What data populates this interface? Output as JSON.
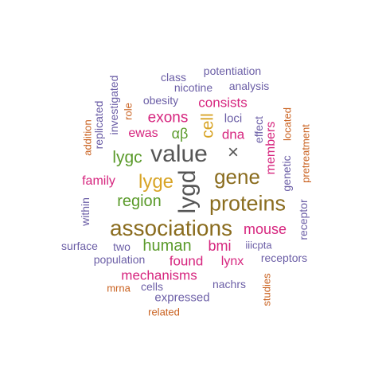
{
  "colors": {
    "purple": "#6b5ea6",
    "magenta": "#d6257e",
    "green": "#5a9a2a",
    "orange": "#c9601e",
    "brown": "#8a6c1e",
    "gold": "#d8a426",
    "gray": "#555555"
  },
  "words": {
    "w01": "associations",
    "w02": "proteins",
    "w03": "value",
    "w04": "lygd",
    "w05": "gene",
    "w06": "lyge",
    "w07": "human",
    "w08": "region",
    "w09": "lygc",
    "w10": "mouse",
    "w11": "exons",
    "w12": "αβ",
    "w13": "cell",
    "w14": "found",
    "w15": "mechanisms",
    "w16": "bmi",
    "w17": "consists",
    "w18": "members",
    "w19": "family",
    "w20": "ewas",
    "w21": "dna",
    "w22": "lynx",
    "w23": "×",
    "w24": "genetic",
    "w25": "receptor",
    "w26": "receptors",
    "w27": "expressed",
    "w28": "loci",
    "w29": "two",
    "w30": "potentiation",
    "w31": "class",
    "w32": "nicotine",
    "w33": "analysis",
    "w34": "obesity",
    "w35": "surface",
    "w36": "population",
    "w37": "cells",
    "w38": "nachrs",
    "w39": "within",
    "w40": "iiicpta",
    "w41": "effect",
    "w42": "replicated",
    "w43": "investigated",
    "w44": "addition",
    "w45": "role",
    "w46": "located",
    "w47": "pretreatment",
    "w48": "studies",
    "w49": "mrna",
    "w50": "related"
  }
}
